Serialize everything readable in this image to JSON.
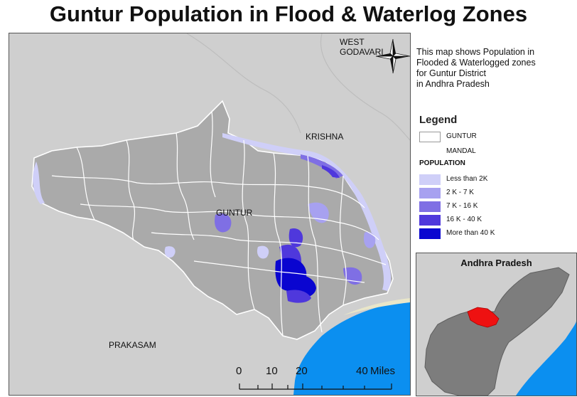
{
  "title": "Guntur Population in Flood & Waterlog Zones",
  "places": {
    "west_godavari": "WEST GODAVARI",
    "krishna": "KRISHNA",
    "guntur": "GUNTUR",
    "prakasam": "PRAKASAM"
  },
  "description": [
    "This map shows Population in",
    "Flooded & Waterlogged zones",
    "for Guntur District",
    "in Andhra Pradesh"
  ],
  "legend": {
    "title": "Legend",
    "boundaries": [
      {
        "label": "GUNTUR",
        "color": "#ffffff"
      },
      {
        "label": "MANDAL",
        "color": "#ffffff"
      }
    ],
    "population_title": "POPULATION",
    "classes": [
      {
        "label": "Less than 2K",
        "color": "#cfcff8"
      },
      {
        "label": "2 K - 7 K",
        "color": "#a7a1f0"
      },
      {
        "label": "7 K - 16 K",
        "color": "#7f6fe4"
      },
      {
        "label": "16 K - 40 K",
        "color": "#4f38dc"
      },
      {
        "label": "More than 40 K",
        "color": "#0a05d0"
      }
    ]
  },
  "scale_bar": {
    "ticks": [
      "0",
      "10",
      "20",
      "40"
    ],
    "unit": "Miles"
  },
  "inset": {
    "title": "Andhra Pradesh",
    "highlight_color": "#ee1111"
  },
  "colors": {
    "background_land": "#cfcfcf",
    "district_land": "#aaaaaa",
    "sea": "#0b8ff0",
    "mandal_boundary": "#ffffff"
  },
  "icons": {
    "north_arrow": "compass-rose-icon"
  }
}
